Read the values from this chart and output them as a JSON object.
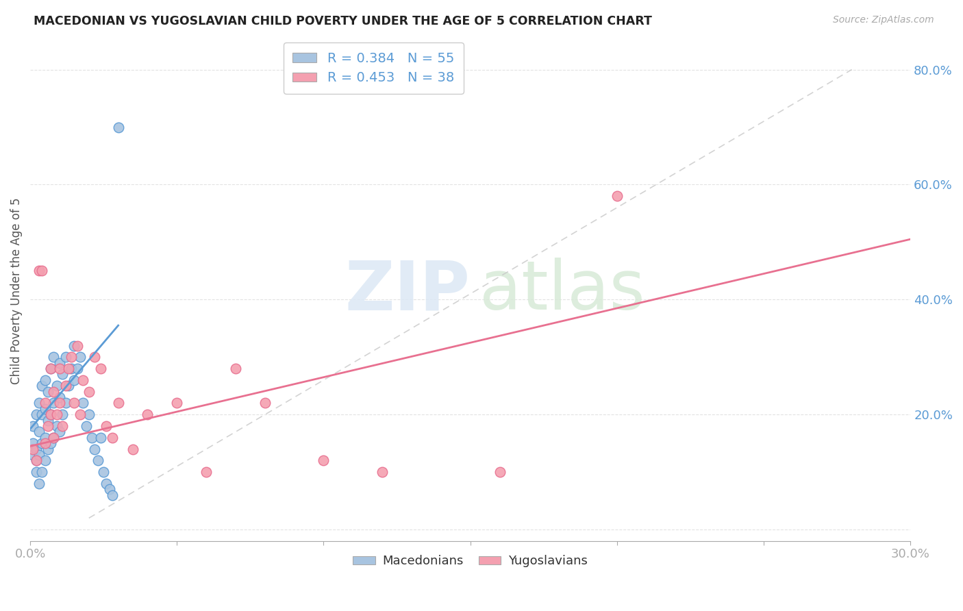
{
  "title": "MACEDONIAN VS YUGOSLAVIAN CHILD POVERTY UNDER THE AGE OF 5 CORRELATION CHART",
  "source": "Source: ZipAtlas.com",
  "ylabel": "Child Poverty Under the Age of 5",
  "xlim": [
    0.0,
    0.3
  ],
  "ylim": [
    -0.02,
    0.85
  ],
  "mac_color": "#a8c4e0",
  "yug_color": "#f4a0b0",
  "mac_line_color": "#5b9bd5",
  "yug_line_color": "#e87090",
  "diagonal_color": "#c8c8c8",
  "background_color": "#ffffff",
  "grid_color": "#e0e0e0",
  "mac_points_x": [
    0.001,
    0.001,
    0.001,
    0.002,
    0.002,
    0.002,
    0.002,
    0.003,
    0.003,
    0.003,
    0.003,
    0.004,
    0.004,
    0.004,
    0.004,
    0.005,
    0.005,
    0.005,
    0.005,
    0.006,
    0.006,
    0.006,
    0.007,
    0.007,
    0.007,
    0.008,
    0.008,
    0.008,
    0.009,
    0.009,
    0.01,
    0.01,
    0.01,
    0.011,
    0.011,
    0.012,
    0.012,
    0.013,
    0.014,
    0.015,
    0.015,
    0.016,
    0.017,
    0.018,
    0.019,
    0.02,
    0.021,
    0.022,
    0.023,
    0.024,
    0.025,
    0.026,
    0.027,
    0.028,
    0.03
  ],
  "mac_points_y": [
    0.13,
    0.15,
    0.18,
    0.1,
    0.12,
    0.14,
    0.2,
    0.08,
    0.13,
    0.17,
    0.22,
    0.1,
    0.15,
    0.2,
    0.25,
    0.12,
    0.16,
    0.21,
    0.26,
    0.14,
    0.19,
    0.24,
    0.15,
    0.2,
    0.28,
    0.16,
    0.22,
    0.3,
    0.18,
    0.25,
    0.17,
    0.23,
    0.29,
    0.2,
    0.27,
    0.22,
    0.3,
    0.25,
    0.28,
    0.26,
    0.32,
    0.28,
    0.3,
    0.22,
    0.18,
    0.2,
    0.16,
    0.14,
    0.12,
    0.16,
    0.1,
    0.08,
    0.07,
    0.06,
    0.7
  ],
  "yug_points_x": [
    0.001,
    0.002,
    0.003,
    0.004,
    0.005,
    0.005,
    0.006,
    0.007,
    0.007,
    0.008,
    0.008,
    0.009,
    0.01,
    0.01,
    0.011,
    0.012,
    0.013,
    0.014,
    0.015,
    0.016,
    0.017,
    0.018,
    0.02,
    0.022,
    0.024,
    0.026,
    0.028,
    0.03,
    0.035,
    0.04,
    0.05,
    0.06,
    0.07,
    0.08,
    0.1,
    0.12,
    0.16,
    0.2
  ],
  "yug_points_y": [
    0.14,
    0.12,
    0.45,
    0.45,
    0.15,
    0.22,
    0.18,
    0.2,
    0.28,
    0.16,
    0.24,
    0.2,
    0.22,
    0.28,
    0.18,
    0.25,
    0.28,
    0.3,
    0.22,
    0.32,
    0.2,
    0.26,
    0.24,
    0.3,
    0.28,
    0.18,
    0.16,
    0.22,
    0.14,
    0.2,
    0.22,
    0.1,
    0.28,
    0.22,
    0.12,
    0.1,
    0.1,
    0.58
  ]
}
